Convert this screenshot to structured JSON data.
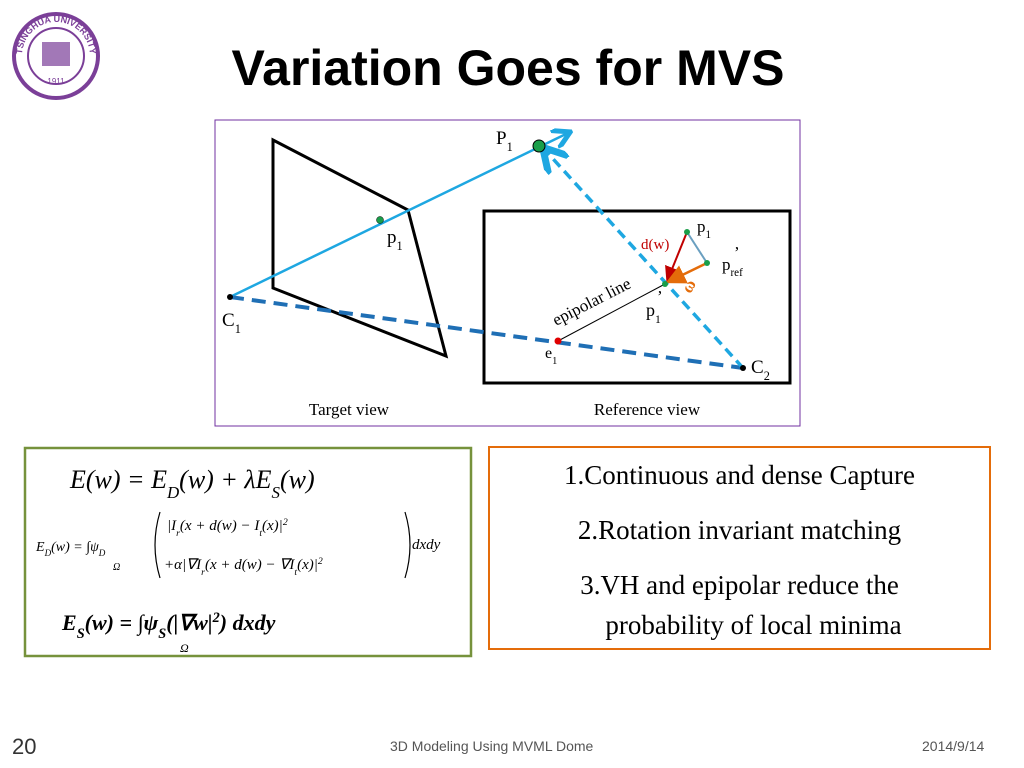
{
  "logo": {
    "ring_text": "TSINGHUA UNIVERSITY",
    "year": "1911"
  },
  "title": "Variation Goes for MVS",
  "diagram": {
    "labels": {
      "big_p1": [
        "P",
        "1"
      ],
      "left_p1": [
        "p",
        "1"
      ],
      "c1": [
        "C",
        "1"
      ],
      "right_p1": [
        "p",
        "1"
      ],
      "dw": "d(w)",
      "pref": [
        "p",
        "ref"
      ],
      "pref_prime": "’",
      "omega": "ω",
      "epipolar": "epipolar  line",
      "p1_prime": [
        "p",
        "1"
      ],
      "p1_prime_mark": "’",
      "e1": [
        "e",
        "1"
      ],
      "c2": [
        "C",
        "2"
      ]
    },
    "captions": [
      "Target view",
      "Reference view"
    ]
  },
  "equations": {
    "eq1": [
      "E(w) = E",
      {
        "sub": "D"
      },
      "(w) + λE",
      {
        "sub": "S"
      },
      "(w)"
    ],
    "eq2_left": [
      "E",
      {
        "sub": "D"
      },
      "(w) = ∫ψ",
      {
        "sub": "D"
      }
    ],
    "eq2_omega": "Ω",
    "eq2_row1": [
      "|I",
      {
        "sub": "r"
      },
      "(x + d(w) − I",
      {
        "sub": "t"
      },
      "(x)|",
      {
        "sup": "2"
      }
    ],
    "eq2_row2": [
      "+α|∇I",
      {
        "sub": "r"
      },
      "(x + d(w) − ∇I",
      {
        "sub": "t"
      },
      "(x)|",
      {
        "sup": "2"
      }
    ],
    "eq2_right": "dxdy",
    "eq3": [
      "E",
      {
        "sub": "S"
      },
      "(w) = ∫ψ",
      {
        "sub": "S"
      },
      "(|∇w|",
      {
        "sup": "2"
      },
      ") dxdy"
    ],
    "eq3_omega": "Ω"
  },
  "list": [
    "1.Continuous and dense Capture",
    "2.Rotation invariant matching",
    "3.VH and epipolar reduce the",
    "probability of local minima"
  ],
  "footer": {
    "page": "20",
    "center": "3D Modeling Using MVML Dome",
    "date": "2014/9/14"
  }
}
